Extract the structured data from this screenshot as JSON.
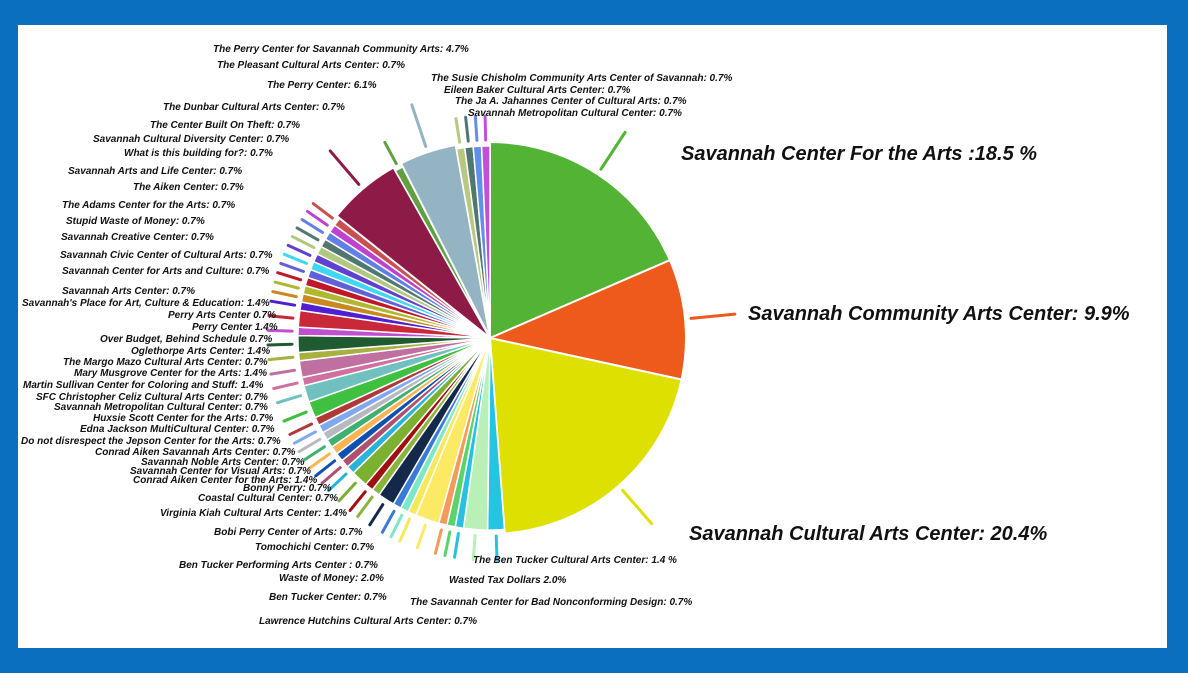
{
  "chart_data": {
    "type": "pie",
    "title": "",
    "slices": [
      {
        "label": "Savannah Center For the Arts :18.5 %",
        "value": 18.5,
        "color": "#52b334"
      },
      {
        "label": "Savannah Community Arts Center: 9.9%",
        "value": 9.9,
        "color": "#ee5a1c"
      },
      {
        "label": "Savannah Cultural Arts Center: 20.4%",
        "value": 20.4,
        "color": "#dde000"
      },
      {
        "label": "The Ben Tucker Cultural Arts Center: 1.4 %",
        "value": 1.4,
        "color": "#25c4e0"
      },
      {
        "label": "Wasted Tax Dollars 2.0%",
        "value": 2.0,
        "color": "#b8f0b8"
      },
      {
        "label": "The Savannah Center for Bad Nonconforming Design: 0.7%",
        "value": 0.7,
        "color": "#29c0e0"
      },
      {
        "label": "Lawrence Hutchins Cultural Arts Center: 0.7%",
        "value": 0.7,
        "color": "#5ad36a"
      },
      {
        "label": "Ben Tucker Center: 0.7%",
        "value": 0.7,
        "color": "#f59a5a"
      },
      {
        "label": "Waste of Money: 2.0%",
        "value": 2.0,
        "color": "#fce964"
      },
      {
        "label": "Ben Tucker Performing Arts Center : 0.7%",
        "value": 0.7,
        "color": "#f5e95a"
      },
      {
        "label": "Tomochichi Center: 0.7%",
        "value": 0.7,
        "color": "#7de8c8"
      },
      {
        "label": "Bobi Perry Center of Arts: 0.7%",
        "value": 0.7,
        "color": "#3a7ad8"
      },
      {
        "label": "Virginia Kiah Cultural Arts Center: 1.4%",
        "value": 1.4,
        "color": "#14284a"
      },
      {
        "label": "Coastal Cultural Center: 0.7%",
        "value": 0.7,
        "color": "#8ab43c"
      },
      {
        "label": "Bonny Perry: 0.7%",
        "value": 0.7,
        "color": "#a01010"
      },
      {
        "label": "Conrad Aiken Center for the Arts: 1.4%",
        "value": 1.4,
        "color": "#7bb030"
      },
      {
        "label": "Savannah Center for Visual Arts: 0.7%",
        "value": 0.7,
        "color": "#28b4d8"
      },
      {
        "label": "Savannah Noble Arts Center: 0.7%",
        "value": 0.7,
        "color": "#b05070"
      },
      {
        "label": "Conrad Aiken Savannah Arts Center: 0.7%",
        "value": 0.7,
        "color": "#1050b0"
      },
      {
        "label": "Do not disrespect the Jepson Center for the Arts: 0.7%",
        "value": 0.7,
        "color": "#fbb450"
      },
      {
        "label": "Edna Jackson MultiCultural Center: 0.7%",
        "value": 0.7,
        "color": "#40b070"
      },
      {
        "label": "Huxsie Scott Center for the Arts: 0.7%",
        "value": 0.7,
        "color": "#b8b8c0"
      },
      {
        "label": "Savannah Metropolitan Cultural Center: 0.7%",
        "value": 0.7,
        "color": "#80a8f0"
      },
      {
        "label": "SFC Christopher Celiz Cultural Arts Center: 0.7%",
        "value": 0.7,
        "color": "#b03838"
      },
      {
        "label": "Martin Sullivan Center for Coloring and Stuff: 1.4%",
        "value": 1.4,
        "color": "#40c040"
      },
      {
        "label": "Mary Musgrove Center for the Arts: 1.4%",
        "value": 1.4,
        "color": "#70c0c0"
      },
      {
        "label": "The Margo Mazo Cultural Arts Center: 0.7%",
        "value": 0.7,
        "color": "#d070a0"
      },
      {
        "label": "Oglethorpe Arts Center: 1.4%",
        "value": 1.4,
        "color": "#c070a0"
      },
      {
        "label": "Over Budget, Behind Schedule 0.7%",
        "value": 0.7,
        "color": "#a8b040"
      },
      {
        "label": "Perry Center 1.4%",
        "value": 1.4,
        "color": "#205a30"
      },
      {
        "label": "Perry Arts Center 0.7%",
        "value": 0.7,
        "color": "#c050d0"
      },
      {
        "label": "Savannah's Place for Art, Culture & Education: 1.4%",
        "value": 1.4,
        "color": "#c82838"
      },
      {
        "label": "Savannah Arts Center: 0.7%",
        "value": 0.7,
        "color": "#5020d0"
      },
      {
        "label": "Savannah Center for Arts and Culture: 0.7%",
        "value": 0.7,
        "color": "#c88a20"
      },
      {
        "label": "Savannah Civic Center of Cultural Arts: 0.7%",
        "value": 0.7,
        "color": "#b0b830"
      },
      {
        "label": "Savannah Creative Center: 0.7%",
        "value": 0.7,
        "color": "#c01828"
      },
      {
        "label": "Stupid Waste of Money: 0.7%",
        "value": 0.7,
        "color": "#6060d8"
      },
      {
        "label": "The Adams Center for the Arts: 0.7%",
        "value": 0.7,
        "color": "#40d8f0"
      },
      {
        "label": "The Aiken Center: 0.7%",
        "value": 0.7,
        "color": "#6040d0"
      },
      {
        "label": "Savannah Arts and Life Center: 0.7%",
        "value": 0.7,
        "color": "#b0c880"
      },
      {
        "label": "What is this building for?: 0.7%",
        "value": 0.7,
        "color": "#507870"
      },
      {
        "label": "Savannah Cultural Diversity Center: 0.7%",
        "value": 0.7,
        "color": "#6080e8"
      },
      {
        "label": "The Center Built On Theft: 0.7%",
        "value": 0.7,
        "color": "#c040d0"
      },
      {
        "label": "The Dunbar Cultural Arts Center: 0.7%",
        "value": 0.7,
        "color": "#c85050"
      },
      {
        "label": "The Perry Center: 6.1%",
        "value": 6.1,
        "color": "#8e1a48"
      },
      {
        "label": "The Pleasant Cultural Arts Center: 0.7%",
        "value": 0.7,
        "color": "#60a040"
      },
      {
        "label": "The Perry Center for Savannah Community Arts: 4.7%",
        "value": 4.7,
        "color": "#94b4c4"
      },
      {
        "label": "The Susie Chisholm Community Arts Center of Savannah: 0.7%",
        "value": 0.7,
        "color": "#b8c880"
      },
      {
        "label": "Eileen Baker Cultural Arts Center: 0.7%",
        "value": 0.7,
        "color": "#507870"
      },
      {
        "label": "The Ja A. Jahannes Center of Cultural Arts: 0.7%",
        "value": 0.7,
        "color": "#6090e8"
      },
      {
        "label": "Savannah Metropolitan Cultural Center: 0.7%",
        "value": 0.7,
        "color": "#c050d8"
      }
    ]
  }
}
